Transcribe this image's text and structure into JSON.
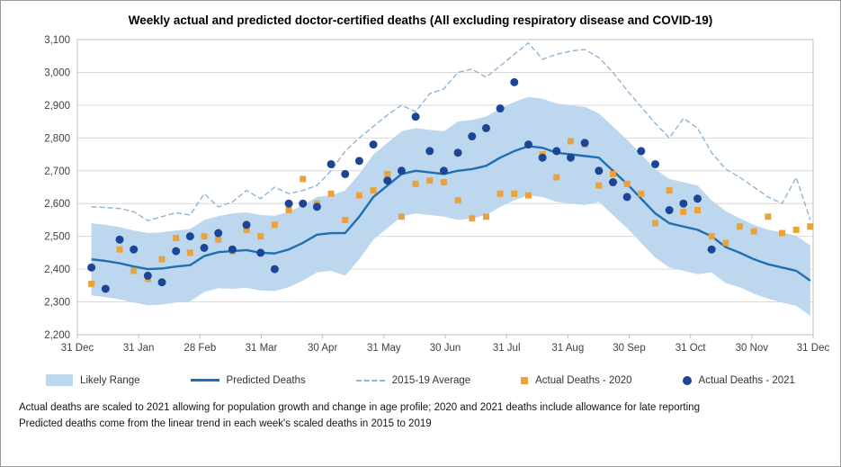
{
  "legend": {
    "likely_range": "Likely Range",
    "predicted": "Predicted Deaths",
    "average": "2015-19 Average",
    "actual_2020": "Actual Deaths - 2020",
    "actual_2021": "Actual Deaths - 2021"
  },
  "footnotes": {
    "line1": "Actual deaths are scaled to 2021 allowing for population growth and change in age profile; 2020 and 2021 deaths include allowance for late reporting",
    "line2": "Predicted deaths come from the linear trend in each week's scaled deaths in 2015 to 2019"
  },
  "colors": {
    "band": "#BDD7EE",
    "predicted": "#1F6FB4",
    "average": "#8FB4D6",
    "actual_2020": "#E9A23C",
    "actual_2021": "#1C4596",
    "grid": "#D9D9D9",
    "plot_border": "#BFBFBF",
    "axis_text": "#404040"
  },
  "chart_data": {
    "type": "line",
    "title": "Weekly actual and predicted doctor-certified deaths (All excluding respiratory disease and COVID-19)",
    "xlabel": "",
    "ylabel": "",
    "ylim": [
      2200,
      3100
    ],
    "ytick_step": 100,
    "grid": "horizontal-only",
    "legend_position": "bottom",
    "axis_weeks": 52.2,
    "x_tick_labels": [
      "31 Dec",
      "31 Jan",
      "28 Feb",
      "31 Mar",
      "30 Apr",
      "31 May",
      "30 Jun",
      "31 Jul",
      "31 Aug",
      "30 Sep",
      "31 Oct",
      "30 Nov",
      "31 Dec"
    ],
    "series": {
      "band_upper": {
        "name": "Likely Range (upper bound)",
        "start_week": 1,
        "values": [
          2540,
          2535,
          2528,
          2518,
          2510,
          2512,
          2518,
          2522,
          2550,
          2562,
          2570,
          2573,
          2565,
          2563,
          2575,
          2595,
          2620,
          2625,
          2640,
          2690,
          2750,
          2785,
          2820,
          2830,
          2825,
          2820,
          2850,
          2855,
          2865,
          2890,
          2910,
          2925,
          2920,
          2905,
          2900,
          2895,
          2875,
          2835,
          2795,
          2750,
          2705,
          2675,
          2665,
          2655,
          2610,
          2577,
          2555,
          2535,
          2520,
          2512,
          2502,
          2472
        ]
      },
      "band_lower": {
        "name": "Likely Range (lower bound)",
        "start_week": 1,
        "values": [
          2320,
          2315,
          2308,
          2298,
          2290,
          2292,
          2298,
          2302,
          2330,
          2342,
          2340,
          2343,
          2335,
          2333,
          2345,
          2365,
          2390,
          2395,
          2380,
          2430,
          2490,
          2525,
          2560,
          2570,
          2565,
          2560,
          2550,
          2555,
          2565,
          2590,
          2610,
          2625,
          2620,
          2605,
          2600,
          2595,
          2605,
          2565,
          2525,
          2480,
          2435,
          2405,
          2395,
          2385,
          2390,
          2357,
          2345,
          2325,
          2310,
          2298,
          2288,
          2258
        ]
      },
      "predicted": {
        "name": "Predicted Deaths",
        "start_week": 1,
        "values": [
          2430,
          2425,
          2418,
          2408,
          2400,
          2402,
          2408,
          2412,
          2440,
          2452,
          2455,
          2458,
          2450,
          2448,
          2460,
          2480,
          2505,
          2510,
          2510,
          2560,
          2620,
          2655,
          2690,
          2700,
          2695,
          2690,
          2700,
          2705,
          2715,
          2740,
          2760,
          2775,
          2770,
          2755,
          2750,
          2745,
          2740,
          2700,
          2660,
          2615,
          2570,
          2540,
          2530,
          2520,
          2500,
          2467,
          2450,
          2430,
          2415,
          2405,
          2395,
          2365
        ]
      },
      "average_2015_19": {
        "name": "2015-19 Average",
        "start_week": 1,
        "values": [
          2590,
          2588,
          2585,
          2575,
          2548,
          2560,
          2572,
          2565,
          2630,
          2590,
          2605,
          2640,
          2615,
          2650,
          2630,
          2640,
          2655,
          2700,
          2760,
          2800,
          2835,
          2870,
          2900,
          2880,
          2935,
          2950,
          3000,
          3010,
          2985,
          3020,
          3055,
          3090,
          3040,
          3055,
          3065,
          3070,
          3045,
          3000,
          2945,
          2895,
          2845,
          2800,
          2860,
          2830,
          2755,
          2705,
          2680,
          2650,
          2620,
          2600,
          2680,
          2550
        ]
      },
      "actual_2020": {
        "name": "Actual Deaths - 2020",
        "start_week": 1,
        "values": [
          2355,
          2340,
          2460,
          2395,
          2370,
          2430,
          2495,
          2450,
          2500,
          2490,
          2455,
          2520,
          2500,
          2535,
          2580,
          2675,
          2600,
          2630,
          2550,
          2625,
          2640,
          2690,
          2560,
          2660,
          2670,
          2665,
          2610,
          2555,
          2560,
          2630,
          2630,
          2625,
          2750,
          2680,
          2790,
          2780,
          2655,
          2690,
          2660,
          2630,
          2540,
          2640,
          2575,
          2580,
          2500,
          2480,
          2530,
          2515,
          2560,
          2510,
          2520,
          2530
        ]
      },
      "actual_2021": {
        "name": "Actual Deaths - 2021",
        "start_week": 1,
        "values": [
          2405,
          2340,
          2490,
          2460,
          2380,
          2360,
          2455,
          2500,
          2465,
          2510,
          2460,
          2535,
          2450,
          2400,
          2600,
          2600,
          2590,
          2720,
          2690,
          2730,
          2780,
          2670,
          2700,
          2865,
          2760,
          2700,
          2755,
          2805,
          2830,
          2890,
          2970,
          2780,
          2740,
          2760,
          2740,
          2785,
          2700,
          2665,
          2620,
          2760,
          2720,
          2580,
          2600,
          2615,
          2460
        ]
      }
    }
  }
}
